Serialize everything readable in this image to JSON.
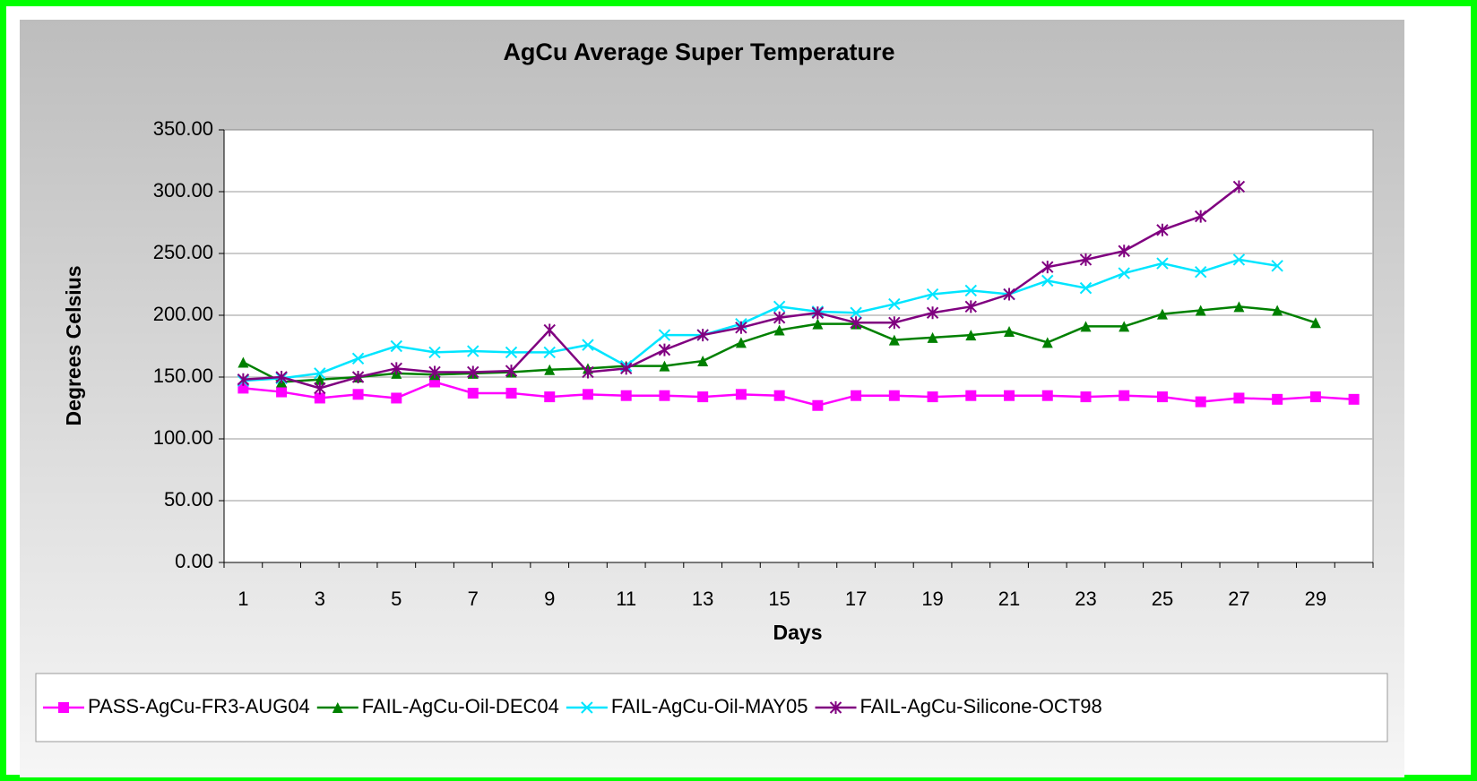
{
  "chart_data": {
    "type": "line",
    "title": "AgCu Average Super Temperature",
    "x_label": "Days",
    "y_label": "Degrees Celsius",
    "categories": [
      1,
      null,
      3,
      null,
      5,
      null,
      7,
      null,
      9,
      null,
      11,
      null,
      13,
      null,
      15,
      null,
      17,
      null,
      19,
      null,
      21,
      null,
      23,
      null,
      25,
      null,
      27,
      null,
      29,
      null
    ],
    "ylim": [
      0,
      350
    ],
    "yticks": [
      {
        "value": 0,
        "label": "0.00"
      },
      {
        "value": 50,
        "label": "50.00"
      },
      {
        "value": 100,
        "label": "100.00"
      },
      {
        "value": 150,
        "label": "150.00"
      },
      {
        "value": 200,
        "label": "200.00"
      },
      {
        "value": 250,
        "label": "250.00"
      },
      {
        "value": 300,
        "label": "300.00"
      },
      {
        "value": 350,
        "label": "350.00"
      }
    ],
    "grid": true,
    "legend": "bottom",
    "series": [
      {
        "name": "PASS-AgCu-FR3-AUG04",
        "color": "#ff00ff",
        "marker": "square",
        "values": [
          141,
          138,
          133,
          136,
          133,
          146,
          137,
          137,
          134,
          136,
          135,
          135,
          134,
          136,
          135,
          127,
          135,
          135,
          134,
          135,
          135,
          135,
          134,
          135,
          134,
          130,
          133,
          132,
          134,
          132
        ]
      },
      {
        "name": "FAIL-AgCu-Oil-DEC04",
        "color": "#008000",
        "marker": "triangle",
        "values": [
          162,
          146,
          148,
          150,
          153,
          152,
          153,
          154,
          156,
          157,
          159,
          159,
          163,
          178,
          188,
          193,
          193,
          180,
          182,
          184,
          187,
          178,
          191,
          191,
          201,
          204,
          207,
          204,
          194,
          null
        ]
      },
      {
        "name": "FAIL-AgCu-Oil-MAY05",
        "color": "#00e5ff",
        "marker": "x",
        "values": [
          147,
          149,
          153,
          165,
          175,
          170,
          171,
          170,
          170,
          176,
          159,
          184,
          184,
          193,
          207,
          203,
          202,
          209,
          217,
          220,
          217,
          228,
          222,
          234,
          242,
          235,
          245,
          240,
          null,
          null
        ]
      },
      {
        "name": "FAIL-AgCu-Silicone-OCT98",
        "color": "#800080",
        "marker": "asterisk",
        "values": [
          148,
          150,
          141,
          150,
          157,
          154,
          154,
          155,
          188,
          154,
          157,
          172,
          184,
          190,
          198,
          202,
          194,
          194,
          202,
          207,
          217,
          239,
          245,
          252,
          269,
          280,
          304,
          null,
          null,
          null
        ]
      }
    ]
  }
}
